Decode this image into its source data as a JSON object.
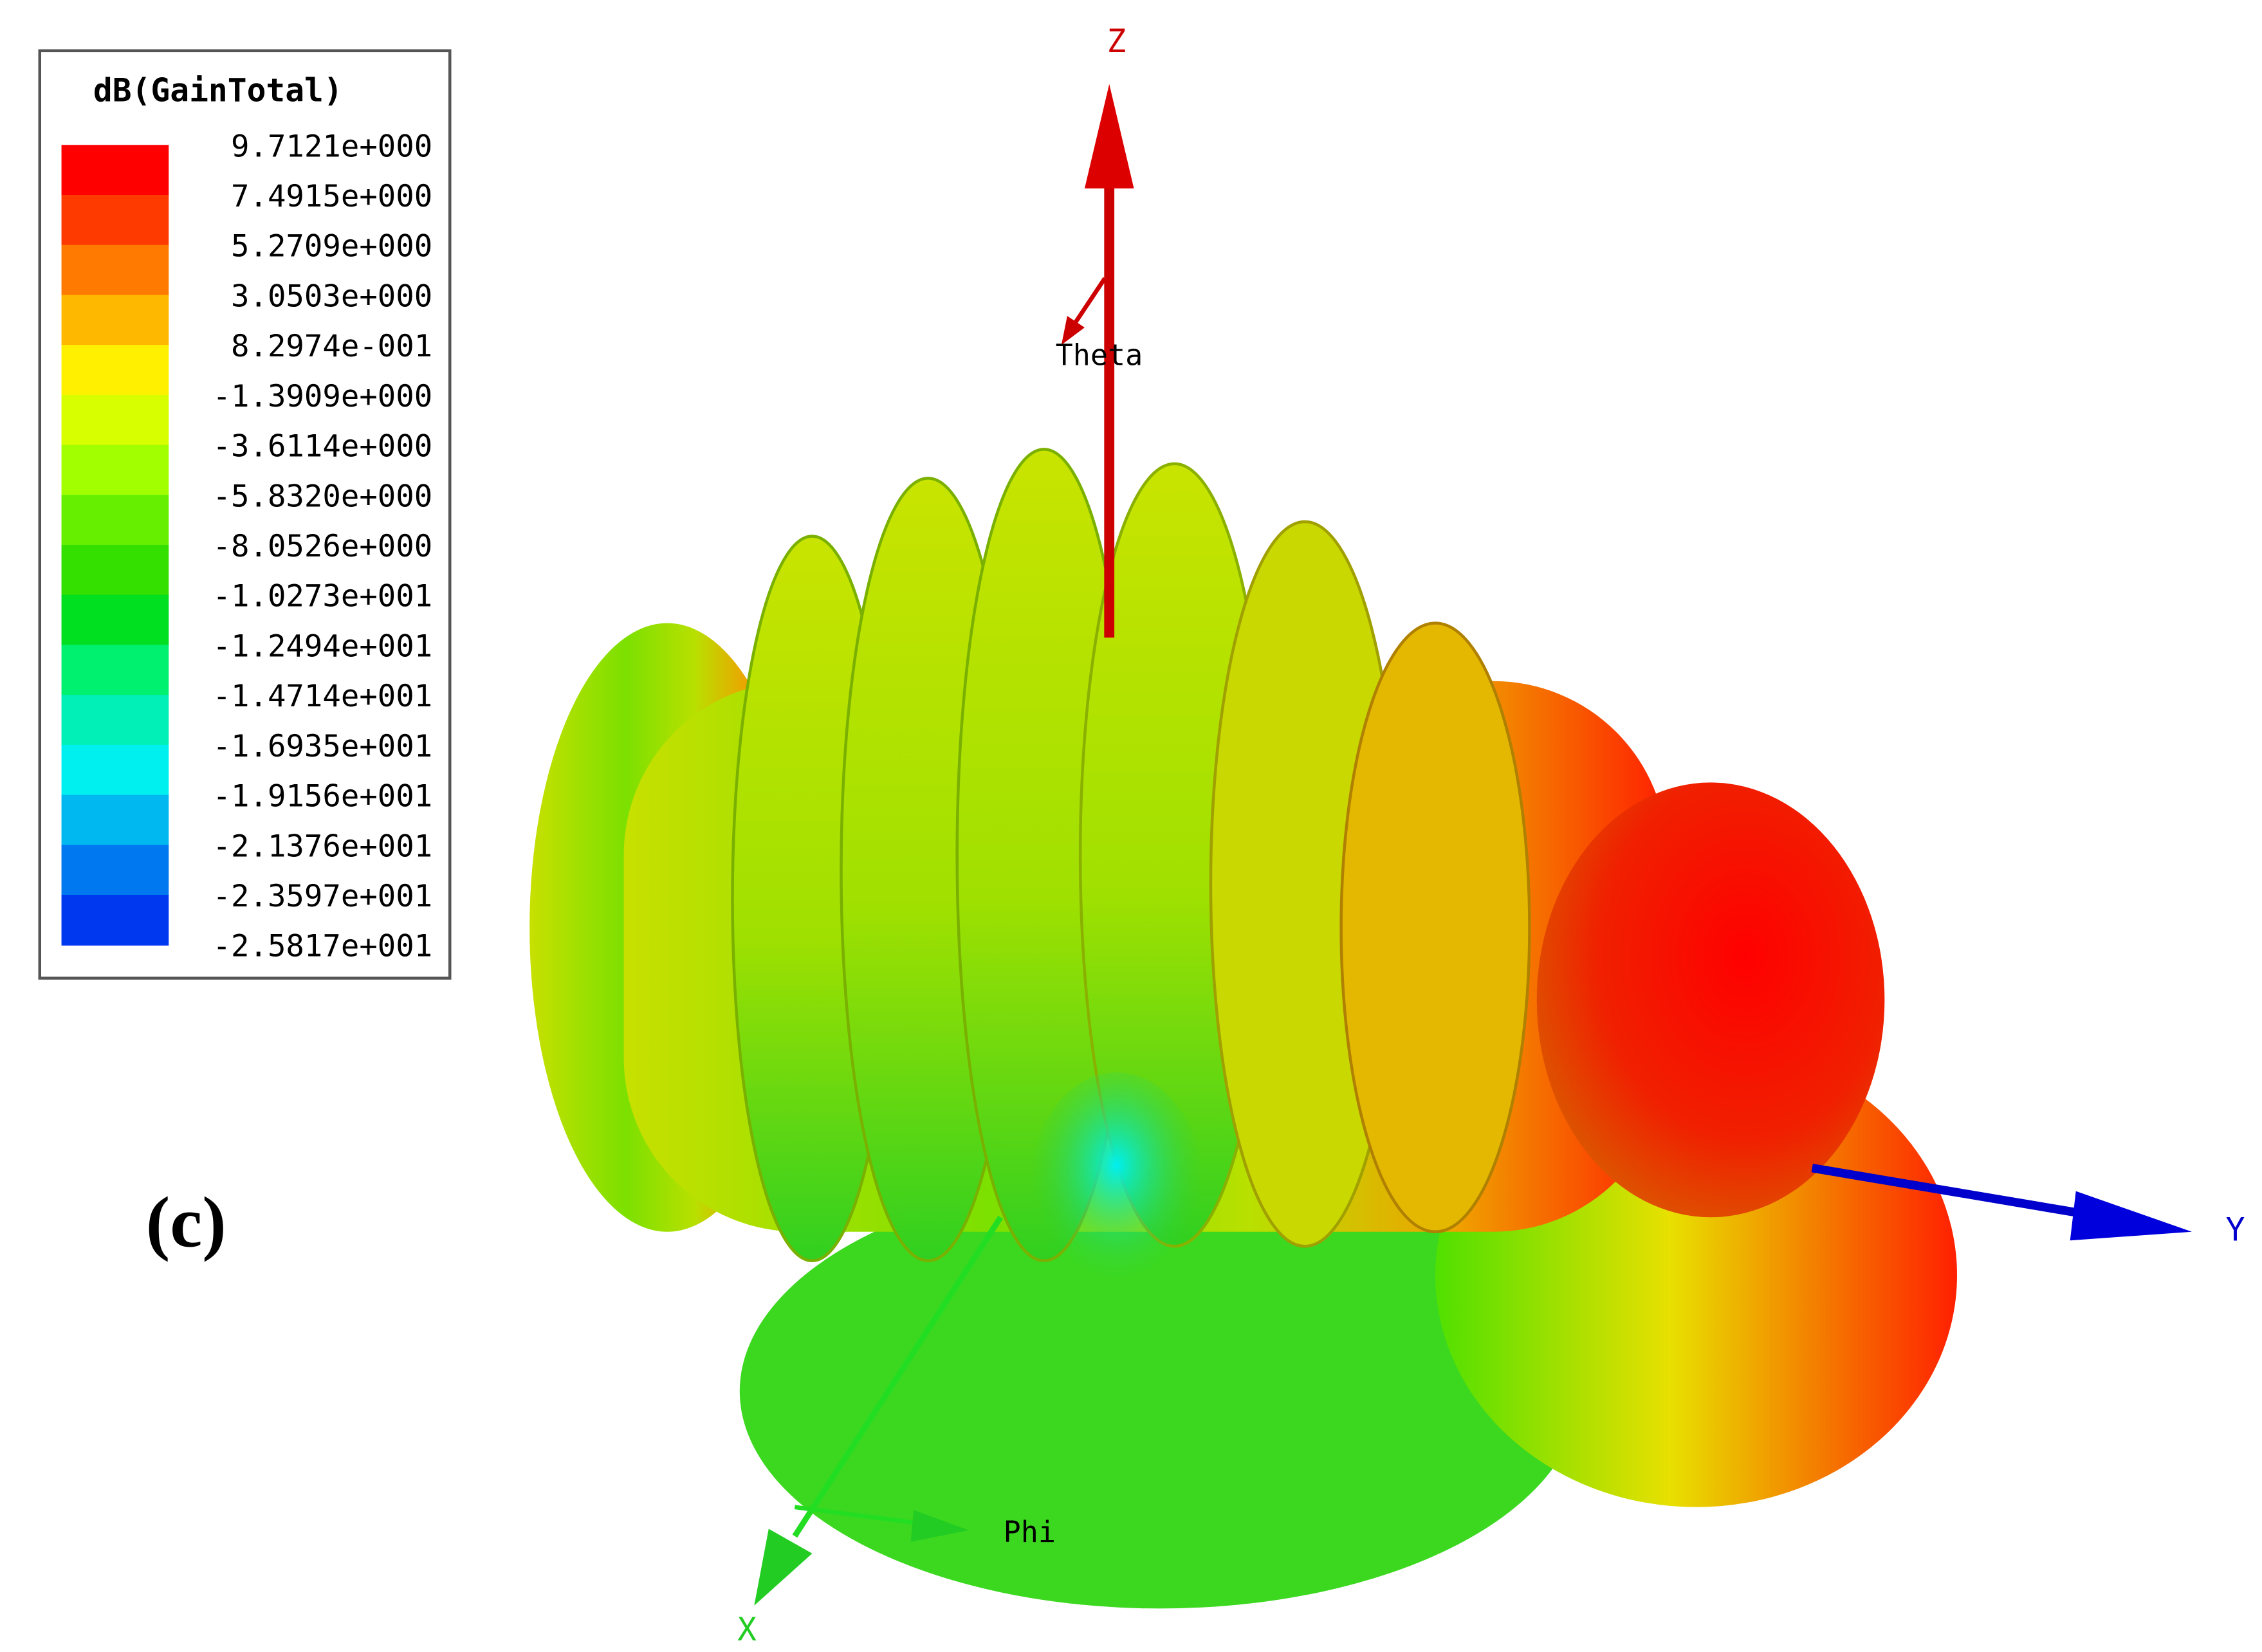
{
  "legend": {
    "title": "dB(GainTotal)",
    "labels": [
      "9.7121e+000",
      "7.4915e+000",
      "5.2709e+000",
      "3.0503e+000",
      "8.2974e-001",
      "-1.3909e+000",
      "-3.6114e+000",
      "-5.8320e+000",
      "-8.0526e+000",
      "-1.0273e+001",
      "-1.2494e+001",
      "-1.4714e+001",
      "-1.6935e+001",
      "-1.9156e+001",
      "-2.1376e+001",
      "-2.3597e+001",
      "-2.5817e+001"
    ],
    "colors": [
      "#ff0000",
      "#ff3a00",
      "#ff7a00",
      "#ffb800",
      "#fff000",
      "#d8ff00",
      "#a2ff00",
      "#66f000",
      "#33e000",
      "#00e020",
      "#00f070",
      "#00f0b8",
      "#00f0f0",
      "#00b8f0",
      "#0078f0",
      "#0038f0"
    ]
  },
  "axes": {
    "z": "Z",
    "theta": "Theta",
    "y": "Y",
    "x": "X",
    "phi": "Phi"
  },
  "panel_label": "(c)"
}
